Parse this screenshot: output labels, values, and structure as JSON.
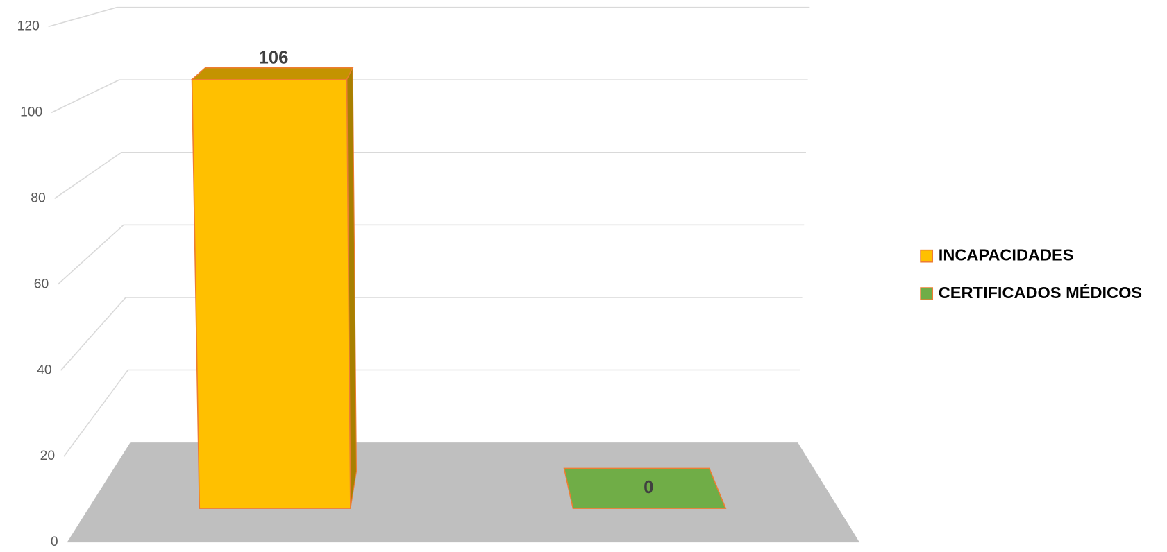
{
  "chart_data": {
    "type": "bar3d",
    "categories": [
      null
    ],
    "series": [
      {
        "name": "INCAPACIDADES",
        "color": "#FFC000",
        "values": [
          106
        ]
      },
      {
        "name": "CERTIFICADOS MÉDICOS",
        "color": "#70AD47",
        "values": [
          0
        ]
      }
    ],
    "ylim": [
      0,
      120
    ],
    "yticks": [
      0,
      20,
      40,
      60,
      80,
      100,
      120
    ],
    "grid": true,
    "legend": "right"
  }
}
